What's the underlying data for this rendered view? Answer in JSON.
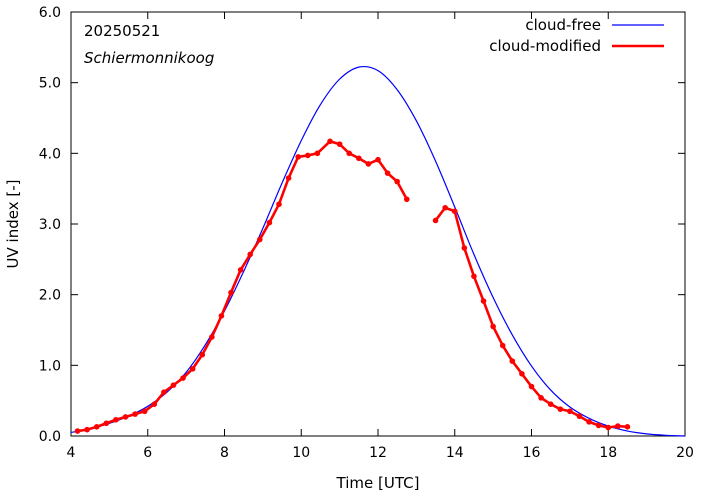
{
  "chart_data": {
    "type": "line",
    "title": "",
    "annotations": {
      "date": "20250521",
      "location": "Schiermonnikoog"
    },
    "xlabel": "Time  [UTC]",
    "ylabel": "UV index  [-]",
    "xlim": [
      4,
      20
    ],
    "ylim": [
      0,
      6
    ],
    "x_ticks": [
      4,
      6,
      8,
      10,
      12,
      14,
      16,
      18,
      20
    ],
    "y_ticks": [
      0,
      1,
      2,
      3,
      4,
      5,
      6
    ],
    "x_tick_labels": [
      "4",
      "6",
      "8",
      "10",
      "12",
      "14",
      "16",
      "18",
      "20"
    ],
    "y_tick_labels": [
      "0.0",
      "1.0",
      "2.0",
      "3.0",
      "4.0",
      "5.0",
      "6.0"
    ],
    "grid": false,
    "legend_position": "top-right",
    "series": [
      {
        "name": "cloud-free",
        "color": "#0000ff",
        "markers": false,
        "x": [
          4.0,
          4.5,
          5.0,
          5.5,
          6.0,
          6.5,
          7.0,
          7.5,
          8.0,
          8.5,
          9.0,
          9.5,
          10.0,
          10.5,
          11.0,
          11.5,
          12.0,
          12.5,
          13.0,
          13.5,
          14.0,
          14.5,
          15.0,
          15.5,
          16.0,
          16.5,
          17.0,
          17.5,
          18.0,
          18.5,
          19.0,
          19.5,
          20.0
        ],
        "y": [
          0.05,
          0.1,
          0.18,
          0.28,
          0.42,
          0.62,
          0.9,
          1.29,
          1.77,
          2.33,
          2.94,
          3.58,
          4.18,
          4.69,
          5.05,
          5.22,
          5.17,
          4.9,
          4.46,
          3.89,
          3.24,
          2.57,
          1.96,
          1.43,
          0.99,
          0.65,
          0.41,
          0.25,
          0.14,
          0.07,
          0.03,
          0.01,
          0.0
        ]
      },
      {
        "name": "cloud-modified",
        "color": "#ff0000",
        "markers": true,
        "segments": [
          {
            "x": [
              4.17,
              4.42,
              4.67,
              4.92,
              5.17,
              5.42,
              5.67,
              5.92,
              6.17,
              6.42,
              6.67,
              6.92,
              7.17,
              7.42,
              7.67,
              7.92,
              8.17,
              8.42,
              8.67,
              8.92,
              9.17,
              9.42,
              9.67,
              9.92,
              10.17,
              10.42,
              10.75,
              11.0,
              11.25,
              11.5,
              11.75,
              12.0,
              12.25,
              12.5,
              12.75
            ],
            "y": [
              0.07,
              0.09,
              0.13,
              0.18,
              0.23,
              0.27,
              0.31,
              0.35,
              0.45,
              0.62,
              0.72,
              0.82,
              0.95,
              1.15,
              1.4,
              1.7,
              2.03,
              2.35,
              2.57,
              2.78,
              3.02,
              3.28,
              3.65,
              3.95,
              3.97,
              4.0,
              4.17,
              4.13,
              4.0,
              3.93,
              3.85,
              3.91,
              3.72,
              3.6,
              3.35
            ]
          },
          {
            "x": [
              13.5,
              13.75,
              14.0,
              14.25,
              14.5,
              14.75,
              15.0,
              15.25,
              15.5,
              15.75,
              16.0,
              16.25,
              16.5,
              16.75,
              17.0,
              17.25,
              17.5,
              17.75,
              18.0,
              18.25,
              18.5
            ],
            "y": [
              3.05,
              3.23,
              3.18,
              2.66,
              2.26,
              1.91,
              1.55,
              1.28,
              1.06,
              0.88,
              0.7,
              0.54,
              0.45,
              0.38,
              0.35,
              0.28,
              0.2,
              0.15,
              0.12,
              0.14,
              0.13
            ]
          }
        ]
      }
    ]
  }
}
